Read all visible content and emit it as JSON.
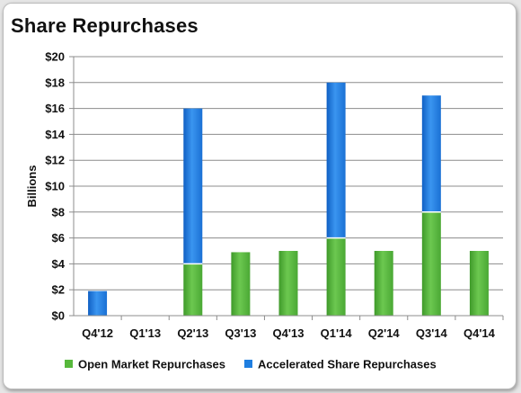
{
  "chart_data": {
    "type": "bar",
    "stacked": true,
    "title": "Share Repurchases",
    "ylabel": "Billions",
    "xlabel": "",
    "ylim": [
      0,
      20
    ],
    "ytick_step": 2,
    "ytick_prefix": "$",
    "grid": true,
    "legend_position": "bottom",
    "categories": [
      "Q4'12",
      "Q1'13",
      "Q2'13",
      "Q3'13",
      "Q4'13",
      "Q1'14",
      "Q2'14",
      "Q3'14",
      "Q4'14"
    ],
    "series": [
      {
        "name": "Open Market Repurchases",
        "color": "#57b83c",
        "values": [
          0,
          0,
          4,
          4.9,
          5,
          6,
          5,
          8,
          5
        ]
      },
      {
        "name": "Accelerated Share Repurchases",
        "color": "#1f7ee0",
        "values": [
          1.9,
          0,
          12,
          0,
          0,
          12,
          0,
          9,
          0
        ]
      }
    ]
  }
}
